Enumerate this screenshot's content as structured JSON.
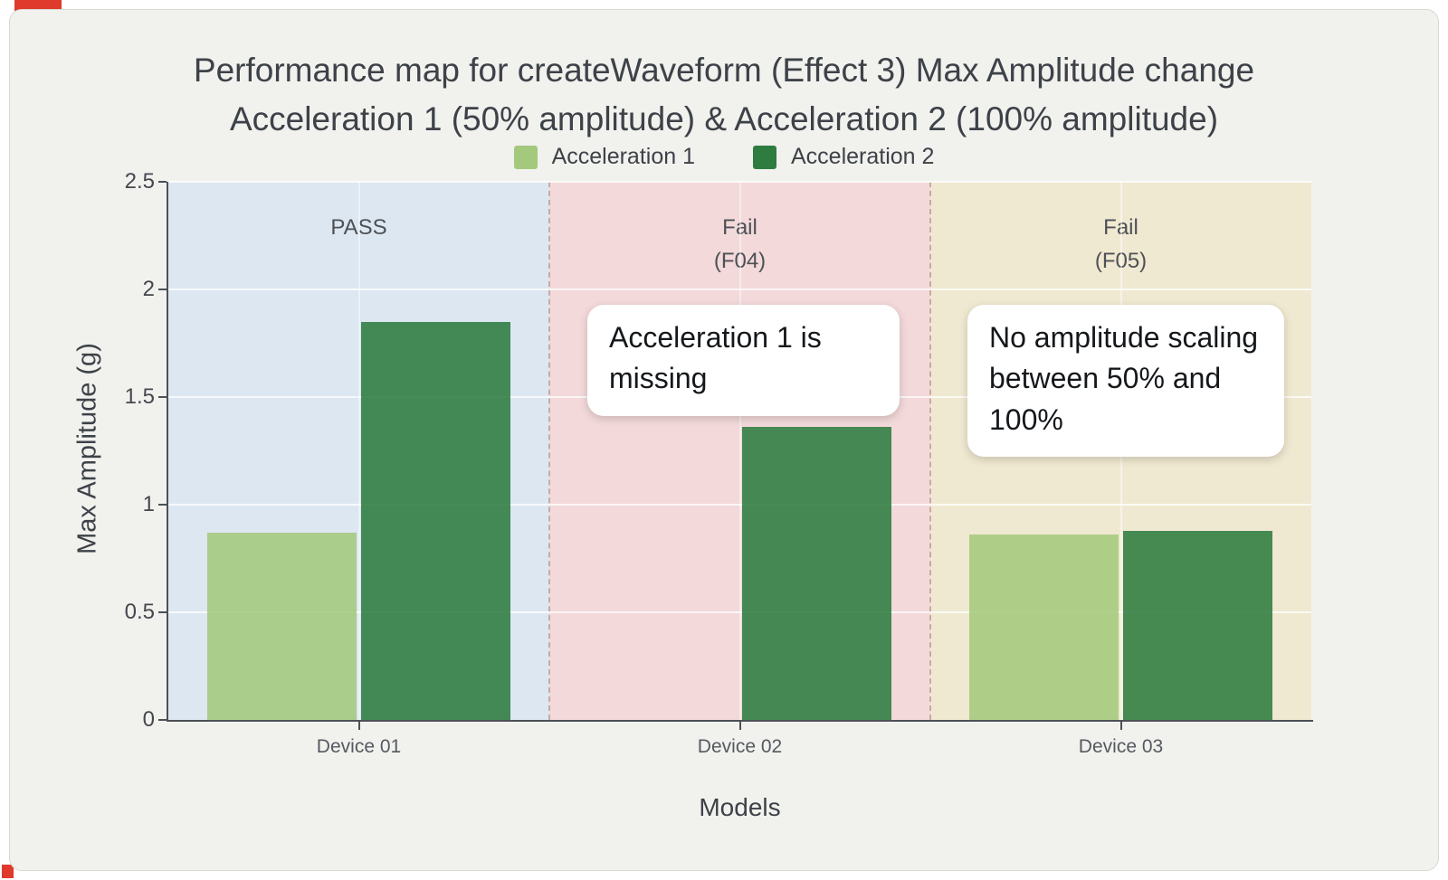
{
  "page": {
    "card_bg": "#f1f1ee",
    "accent_red": "#df3a2b"
  },
  "title": {
    "line1": "Performance map for createWaveform (Effect 3) Max Amplitude change",
    "line2": "Acceleration 1 (50% amplitude) & Acceleration 2 (100% amplitude)"
  },
  "chart_data": {
    "type": "bar",
    "title": "Performance map for createWaveform (Effect 3) Max Amplitude change — Acceleration 1 (50% amplitude) & Acceleration 2 (100% amplitude)",
    "xlabel": "Models",
    "ylabel": "Max Amplitude (g)",
    "ylim": [
      0,
      2.5
    ],
    "yticks": [
      0,
      0.5,
      1,
      1.5,
      2,
      2.5
    ],
    "grid": true,
    "legend_position": "top-center",
    "categories": [
      "Device 01",
      "Device 02",
      "Device 03"
    ],
    "series": [
      {
        "name": "Acceleration 1",
        "color": "#a4c97d",
        "values": [
          0.87,
          null,
          0.86
        ]
      },
      {
        "name": "Acceleration 2",
        "color": "#2e7c40",
        "values": [
          1.85,
          1.36,
          0.88
        ]
      }
    ],
    "zones": [
      {
        "label": "PASS",
        "band_color": "#dce7f1"
      },
      {
        "label": "Fail\n(F04)",
        "band_color": "#f3d9da"
      },
      {
        "label": "Fail\n(F05)",
        "band_color": "#f0e9d1"
      }
    ],
    "annotations": [
      {
        "text": "Acceleration 1 is missing"
      },
      {
        "text": "No amplitude scaling between 50% and 100%"
      }
    ]
  }
}
